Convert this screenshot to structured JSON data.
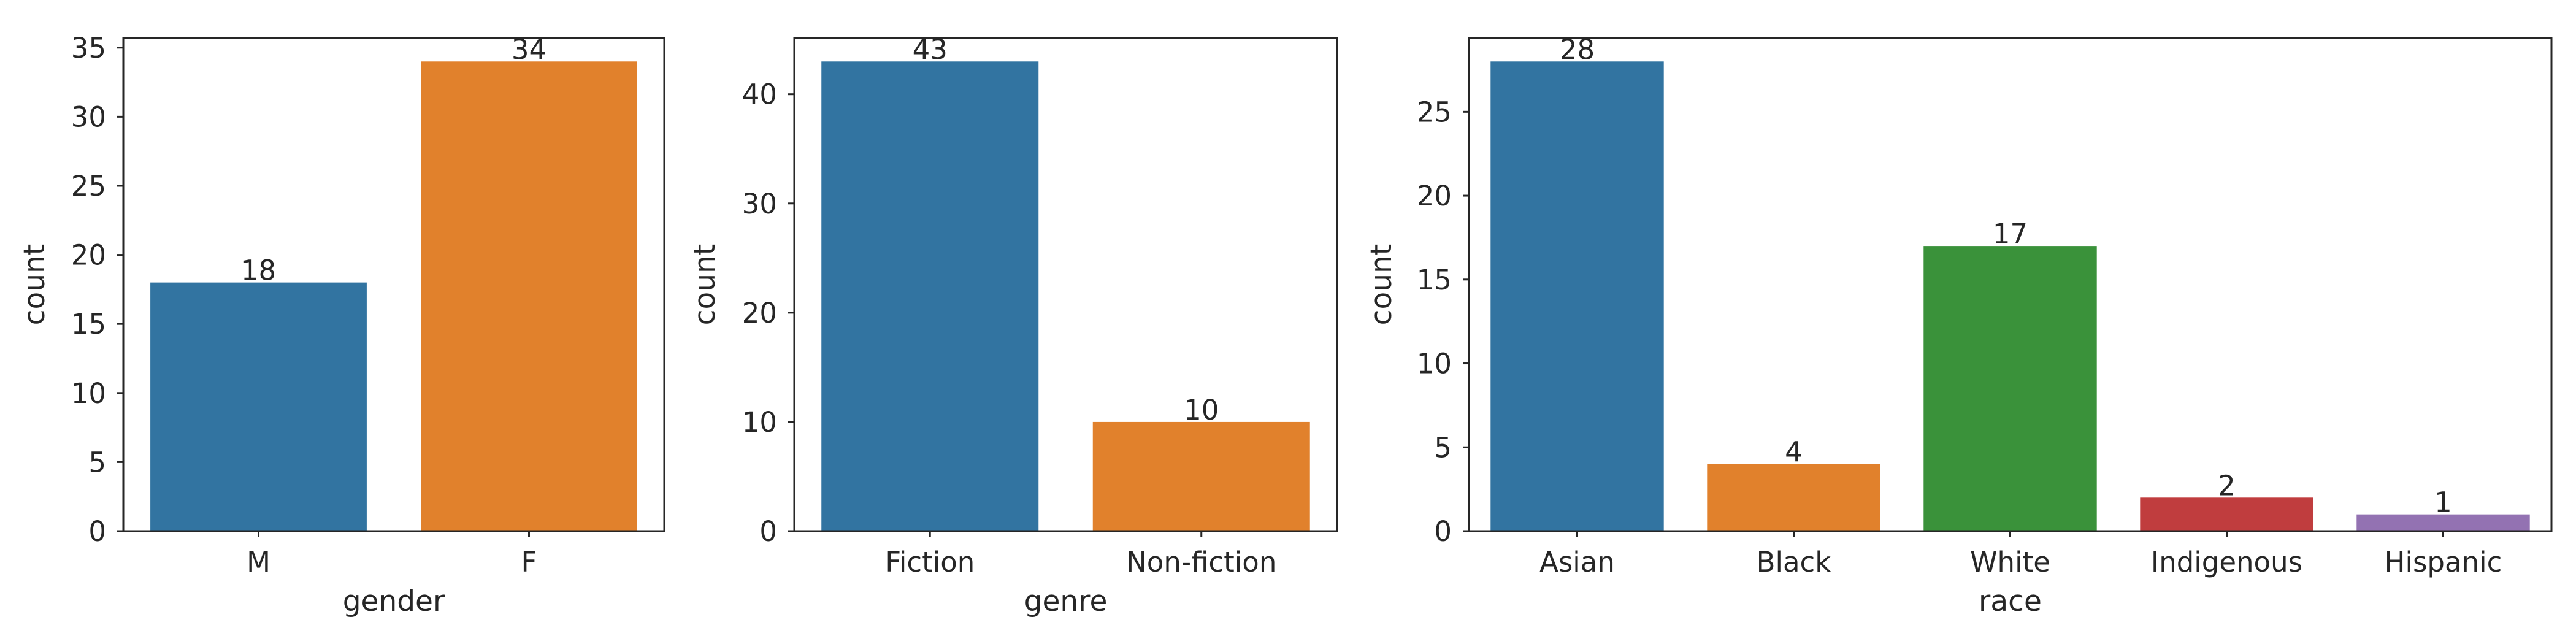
{
  "chart_data": [
    {
      "type": "bar",
      "title": "",
      "xlabel": "gender",
      "ylabel": "count",
      "categories": [
        "M",
        "F"
      ],
      "values": [
        18,
        34
      ],
      "value_labels": [
        "18",
        "34"
      ],
      "colors": [
        "#3274a1",
        "#e1812c"
      ],
      "ylim": [
        0,
        35.7
      ],
      "yticks": [
        0,
        5,
        10,
        15,
        20,
        25,
        30,
        35
      ],
      "grid": false,
      "legend": "none"
    },
    {
      "type": "bar",
      "title": "",
      "xlabel": "genre",
      "ylabel": "count",
      "categories": [
        "Fiction",
        "Non-fiction"
      ],
      "values": [
        43,
        10
      ],
      "value_labels": [
        "43",
        "10"
      ],
      "colors": [
        "#3274a1",
        "#e1812c"
      ],
      "ylim": [
        0,
        45.15
      ],
      "yticks": [
        0,
        10,
        20,
        30,
        40
      ],
      "grid": false,
      "legend": "none"
    },
    {
      "type": "bar",
      "title": "",
      "xlabel": "race",
      "ylabel": "count",
      "categories": [
        "Asian",
        "Black",
        "White",
        "Indigenous",
        "Hispanic"
      ],
      "values": [
        28,
        4,
        17,
        2,
        1
      ],
      "value_labels": [
        "28",
        "4",
        "17",
        "2",
        "1"
      ],
      "colors": [
        "#3274a1",
        "#e1812c",
        "#3a923a",
        "#c03d3e",
        "#9372b2"
      ],
      "ylim": [
        0,
        29.4
      ],
      "yticks": [
        0,
        5,
        10,
        15,
        20,
        25
      ],
      "grid": false,
      "legend": "none"
    }
  ]
}
